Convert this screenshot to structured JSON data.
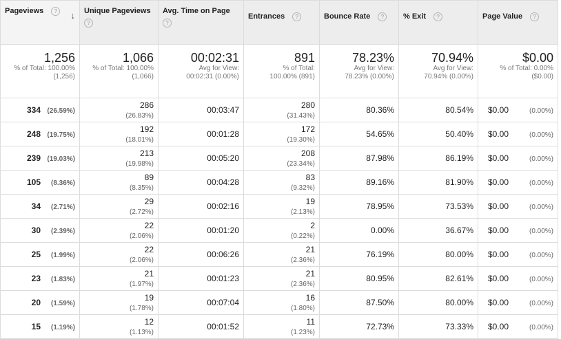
{
  "headers": {
    "pageviews": "Pageviews",
    "unique_pageviews": "Unique Pageviews",
    "avg_time": "Avg. Time on Page",
    "entrances": "Entrances",
    "bounce_rate": "Bounce Rate",
    "exit": "% Exit",
    "page_value": "Page Value",
    "help_glyph": "?",
    "sort_glyph": "↓"
  },
  "summary": {
    "pageviews": {
      "value": "1,256",
      "line1": "% of Total: 100.00%",
      "line2": "(1,256)"
    },
    "unique_pageviews": {
      "value": "1,066",
      "line1": "% of Total: 100.00%",
      "line2": "(1,066)"
    },
    "avg_time": {
      "value": "00:02:31",
      "line1": "Avg for View:",
      "line2": "00:02:31 (0.00%)"
    },
    "entrances": {
      "value": "891",
      "line1": "% of Total:",
      "line2": "100.00% (891)"
    },
    "bounce_rate": {
      "value": "78.23%",
      "line1": "Avg for View:",
      "line2": "78.23% (0.00%)"
    },
    "exit": {
      "value": "70.94%",
      "line1": "Avg for View:",
      "line2": "70.94% (0.00%)"
    },
    "page_value": {
      "value": "$0.00",
      "line1": "% of Total: 0.00%",
      "line2": "($0.00)"
    }
  },
  "rows": [
    {
      "pv": "334",
      "pv_pct": "(26.59%)",
      "up": "286",
      "up_pct": "(26.83%)",
      "time": "00:03:47",
      "en": "280",
      "en_pct": "(31.43%)",
      "br": "80.36%",
      "ex": "80.54%",
      "val": "$0.00",
      "val_pct": "(0.00%)"
    },
    {
      "pv": "248",
      "pv_pct": "(19.75%)",
      "up": "192",
      "up_pct": "(18.01%)",
      "time": "00:01:28",
      "en": "172",
      "en_pct": "(19.30%)",
      "br": "54.65%",
      "ex": "50.40%",
      "val": "$0.00",
      "val_pct": "(0.00%)"
    },
    {
      "pv": "239",
      "pv_pct": "(19.03%)",
      "up": "213",
      "up_pct": "(19.98%)",
      "time": "00:05:20",
      "en": "208",
      "en_pct": "(23.34%)",
      "br": "87.98%",
      "ex": "86.19%",
      "val": "$0.00",
      "val_pct": "(0.00%)"
    },
    {
      "pv": "105",
      "pv_pct": "(8.36%)",
      "up": "89",
      "up_pct": "(8.35%)",
      "time": "00:04:28",
      "en": "83",
      "en_pct": "(9.32%)",
      "br": "89.16%",
      "ex": "81.90%",
      "val": "$0.00",
      "val_pct": "(0.00%)"
    },
    {
      "pv": "34",
      "pv_pct": "(2.71%)",
      "up": "29",
      "up_pct": "(2.72%)",
      "time": "00:02:16",
      "en": "19",
      "en_pct": "(2.13%)",
      "br": "78.95%",
      "ex": "73.53%",
      "val": "$0.00",
      "val_pct": "(0.00%)"
    },
    {
      "pv": "30",
      "pv_pct": "(2.39%)",
      "up": "22",
      "up_pct": "(2.06%)",
      "time": "00:01:20",
      "en": "2",
      "en_pct": "(0.22%)",
      "br": "0.00%",
      "ex": "36.67%",
      "val": "$0.00",
      "val_pct": "(0.00%)"
    },
    {
      "pv": "25",
      "pv_pct": "(1.99%)",
      "up": "22",
      "up_pct": "(2.06%)",
      "time": "00:06:26",
      "en": "21",
      "en_pct": "(2.36%)",
      "br": "76.19%",
      "ex": "80.00%",
      "val": "$0.00",
      "val_pct": "(0.00%)"
    },
    {
      "pv": "23",
      "pv_pct": "(1.83%)",
      "up": "21",
      "up_pct": "(1.97%)",
      "time": "00:01:23",
      "en": "21",
      "en_pct": "(2.36%)",
      "br": "80.95%",
      "ex": "82.61%",
      "val": "$0.00",
      "val_pct": "(0.00%)"
    },
    {
      "pv": "20",
      "pv_pct": "(1.59%)",
      "up": "19",
      "up_pct": "(1.78%)",
      "time": "00:07:04",
      "en": "16",
      "en_pct": "(1.80%)",
      "br": "87.50%",
      "ex": "80.00%",
      "val": "$0.00",
      "val_pct": "(0.00%)"
    },
    {
      "pv": "15",
      "pv_pct": "(1.19%)",
      "up": "12",
      "up_pct": "(1.13%)",
      "time": "00:01:52",
      "en": "11",
      "en_pct": "(1.23%)",
      "br": "72.73%",
      "ex": "73.33%",
      "val": "$0.00",
      "val_pct": "(0.00%)"
    }
  ]
}
